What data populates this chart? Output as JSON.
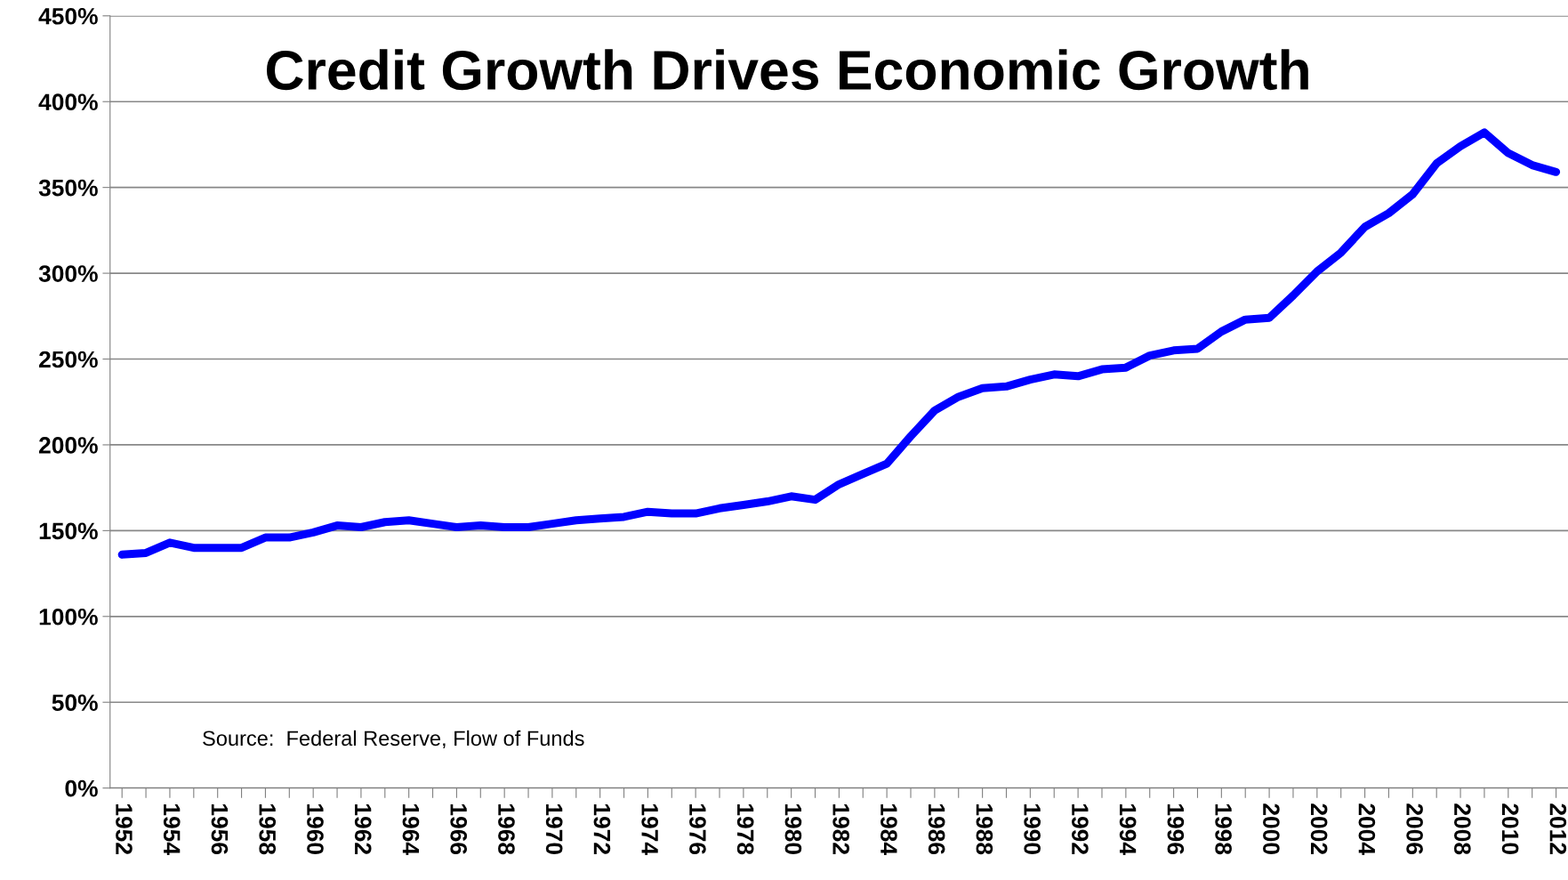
{
  "chart_data": {
    "type": "line",
    "title": "Credit Growth Drives Economic Growth",
    "categories": [
      "1952",
      null,
      "1954",
      null,
      "1956",
      null,
      "1958",
      null,
      "1960",
      null,
      "1962",
      null,
      "1964",
      null,
      "1966",
      null,
      "1968",
      null,
      "1970",
      null,
      "1972",
      null,
      "1974",
      null,
      "1976",
      null,
      "1978",
      null,
      "1980",
      null,
      "1982",
      null,
      "1984",
      null,
      "1986",
      null,
      "1988",
      null,
      "1990",
      null,
      "1992",
      null,
      "1994",
      null,
      "1996",
      null,
      "1998",
      null,
      "2000",
      null,
      "2002",
      null,
      "2004",
      null,
      "2006",
      null,
      "2008",
      null,
      "2010",
      null,
      "2012"
    ],
    "series": [
      {
        "color": "#0000ff",
        "values": [
          136,
          137,
          143,
          140,
          140,
          140,
          146,
          146,
          149,
          153,
          152,
          155,
          156,
          154,
          152,
          153,
          152,
          152,
          154,
          156,
          157,
          158,
          161,
          160,
          160,
          163,
          165,
          167,
          170,
          168,
          177,
          183,
          189,
          205,
          220,
          228,
          233,
          234,
          238,
          241,
          240,
          244,
          245,
          252,
          255,
          256,
          266,
          273,
          274,
          287,
          301,
          312,
          327,
          335,
          346,
          364,
          374,
          382,
          370,
          363,
          359
        ]
      }
    ],
    "ylim": [
      0,
      450
    ],
    "yticks": [
      {
        "value": 0,
        "label": "0%"
      },
      {
        "value": 50,
        "label": "50%"
      },
      {
        "value": 100,
        "label": "100%"
      },
      {
        "value": 150,
        "label": "150%"
      },
      {
        "value": 200,
        "label": "200%"
      },
      {
        "value": 250,
        "label": "250%"
      },
      {
        "value": 300,
        "label": "300%"
      },
      {
        "value": 350,
        "label": "350%"
      },
      {
        "value": 400,
        "label": "400%"
      },
      {
        "value": 450,
        "label": "450%"
      }
    ],
    "grid": "y",
    "marker": "none",
    "line_style": "solid",
    "annotations": [
      "Source:  Federal Reserve, Flow of Funds"
    ]
  }
}
